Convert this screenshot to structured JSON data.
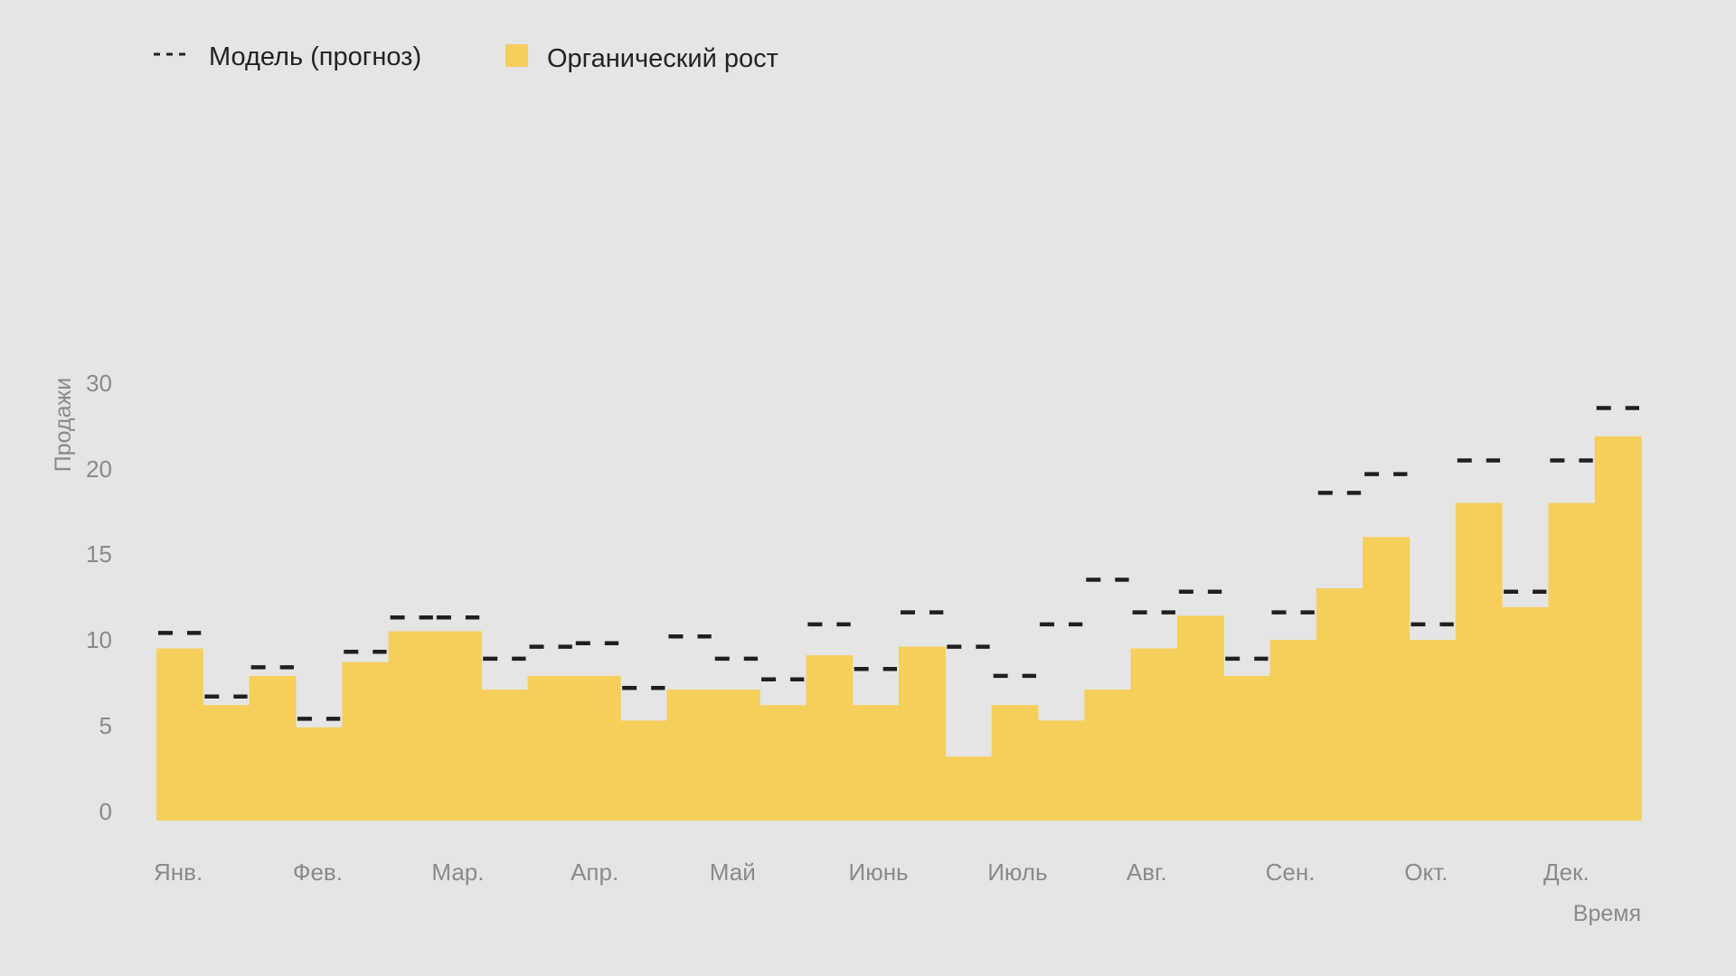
{
  "chart_data": {
    "type": "bar",
    "xlabel": "Время",
    "ylabel": "Продажи",
    "ylim": [
      0,
      30
    ],
    "yticks": [
      {
        "value": 0,
        "label": "0"
      },
      {
        "value": 5,
        "label": "5"
      },
      {
        "value": 10,
        "label": "10"
      },
      {
        "value": 15,
        "label": "15"
      },
      {
        "value": 20,
        "label": "20"
      },
      {
        "value": 30,
        "label": "30"
      }
    ],
    "xtick_labels": [
      "Янв.",
      "Фев.",
      "Мар.",
      "Апр.",
      "Май",
      "Июнь",
      "Июль",
      "Авг.",
      "Сен.",
      "Окт.",
      "Дек."
    ],
    "legend": {
      "position": "top-left",
      "items": [
        {
          "label": "Модель (прогноз)",
          "style": "dashed"
        },
        {
          "label": "Органический рост",
          "style": "bar"
        }
      ]
    },
    "grid": false,
    "series": [
      {
        "name": "Органический рост",
        "type": "bar",
        "color": "#f5cf5a",
        "values": [
          9.5,
          6.2,
          7.9,
          4.9,
          8.7,
          10.5,
          10.5,
          7.1,
          7.9,
          7.9,
          5.3,
          7.1,
          7.1,
          6.2,
          9.1,
          6.2,
          9.6,
          3.2,
          6.2,
          5.3,
          7.1,
          9.5,
          11.4,
          7.9,
          10.0,
          13.0,
          16.0,
          10.0,
          18.0,
          11.9,
          18.0,
          23.8
        ]
      },
      {
        "name": "Модель (прогноз)",
        "type": "step-dashed",
        "color": "#1f1f1f",
        "values": [
          10.4,
          6.7,
          8.4,
          5.4,
          9.3,
          11.3,
          11.3,
          8.9,
          9.6,
          9.8,
          7.2,
          10.2,
          8.9,
          7.7,
          10.9,
          8.3,
          11.6,
          9.6,
          7.9,
          10.9,
          13.5,
          11.6,
          12.8,
          8.9,
          11.6,
          18.6,
          19.7,
          10.9,
          21.0,
          12.8,
          21.0,
          27.1
        ]
      }
    ]
  }
}
